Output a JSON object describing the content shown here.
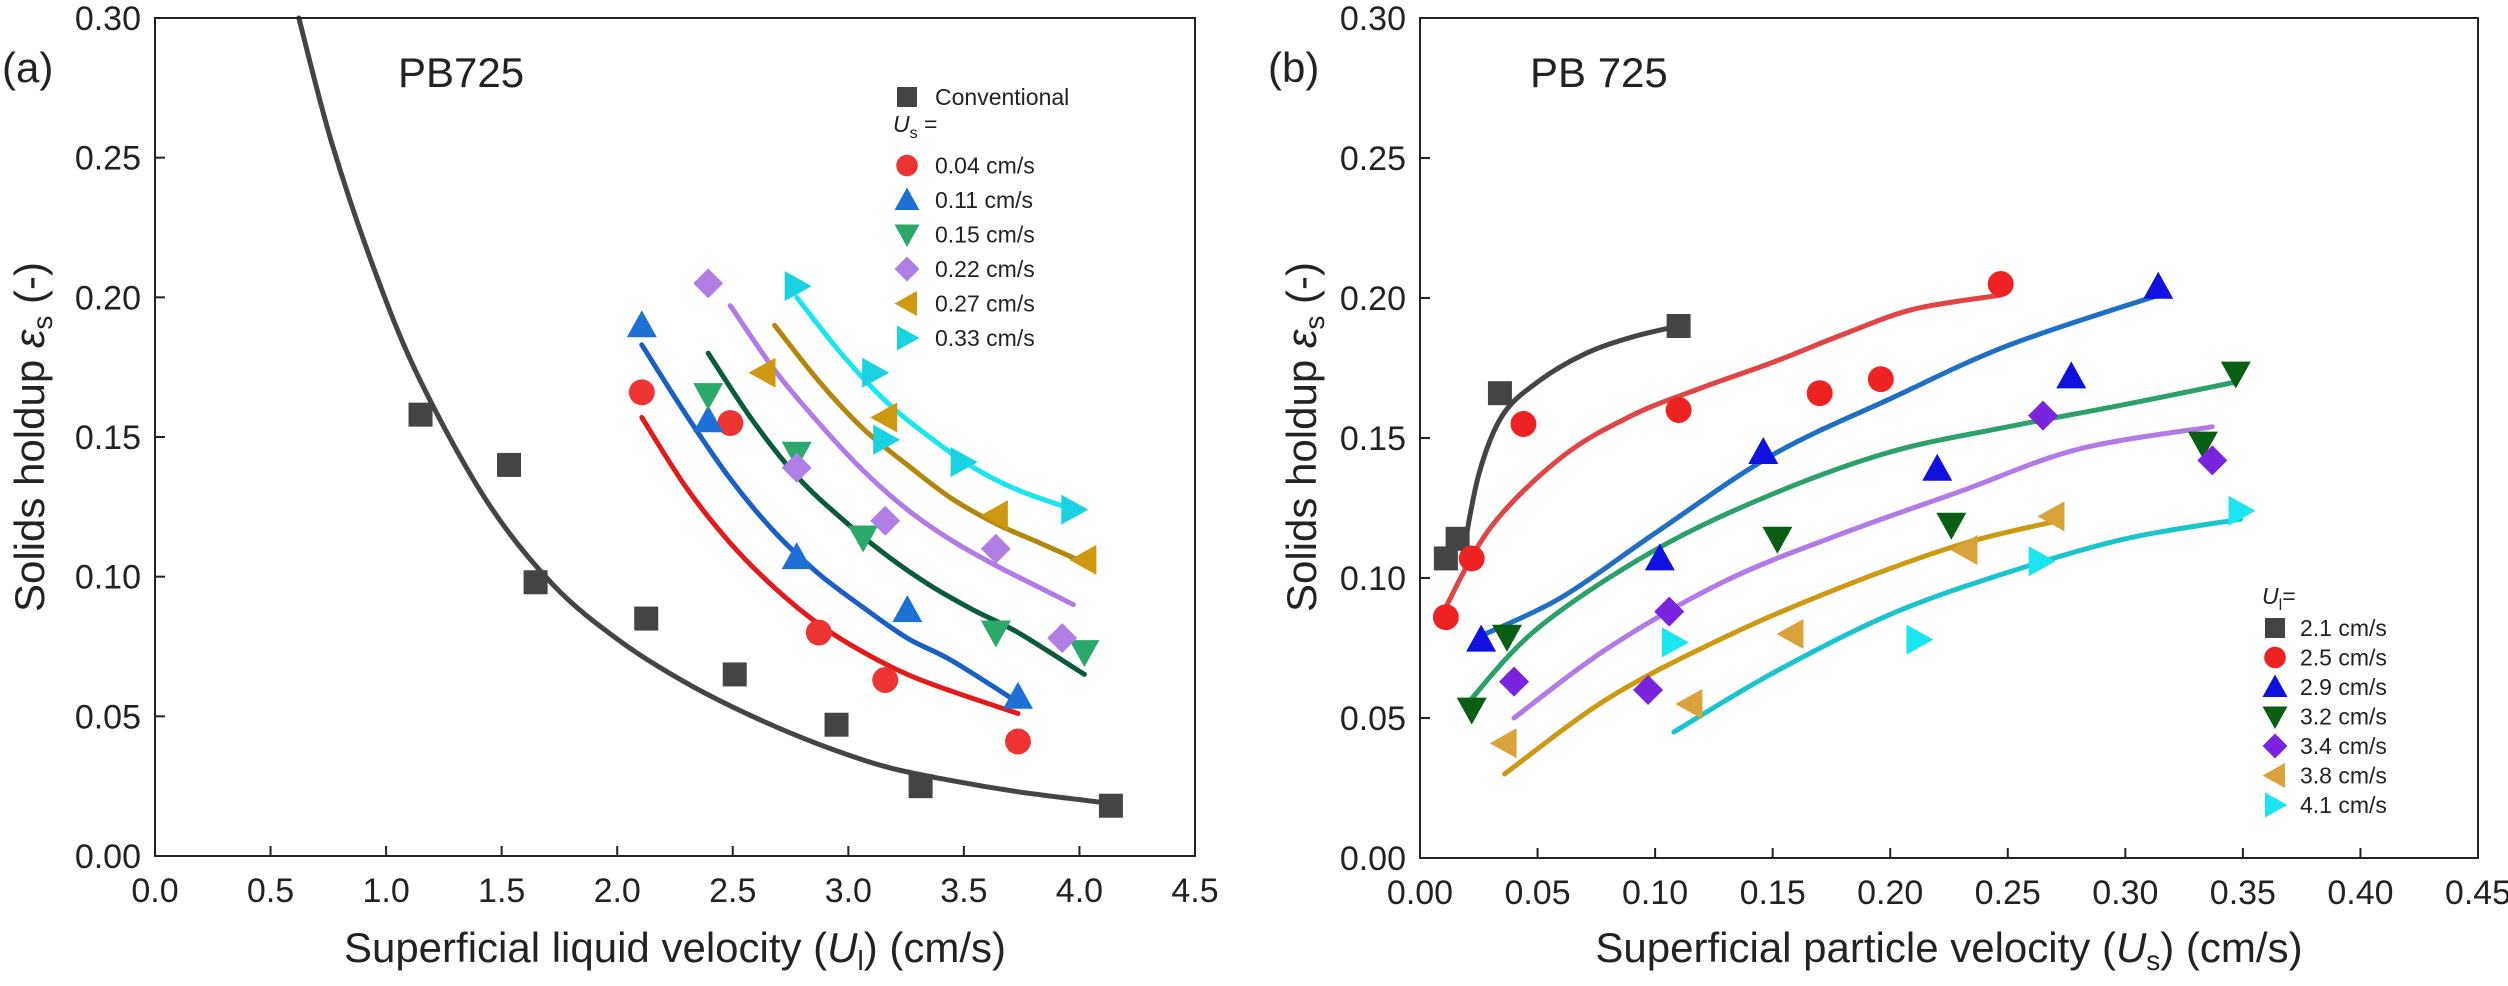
{
  "colors": {
    "axis": "#222222",
    "conventional": "#444444",
    "panel_a_series": [
      "#ee3333",
      "#1c70d6",
      "#2aa96a",
      "#b07fe6",
      "#cc9911",
      "#19d3e3"
    ],
    "panel_a_fits": [
      "#e31a1a",
      "#1a5fc4",
      "#0a5a3c",
      "#b07be6",
      "#b3870d",
      "#1ae6f0"
    ],
    "panel_b_series": [
      "#444444",
      "#ee2222",
      "#1010e0",
      "#0a5e14",
      "#7a24e0",
      "#d9a23a",
      "#19e6f0"
    ],
    "panel_b_fits": [
      "#444444",
      "#e04444",
      "#1f6fc4",
      "#2aa06a",
      "#b07be6",
      "#cc9911",
      "#1ac4cc"
    ]
  },
  "chart_data": [
    {
      "type": "scatter",
      "panel_label": "(a)",
      "title": "PB725",
      "xlabel": "Superficial liquid velocity (U_l) (cm/s)",
      "ylabel": "Solids holdup ε_s (-)",
      "xlim": [
        0,
        4.7
      ],
      "ylim": [
        0,
        0.3
      ],
      "xticks": [
        "0.0",
        "0.5",
        "1.0",
        "1.5",
        "2.0",
        "2.5",
        "3.0",
        "3.5",
        "4.0",
        "4.5"
      ],
      "yticks": [
        "0.00",
        "0.05",
        "0.10",
        "0.15",
        "0.20",
        "0.25",
        "0.30"
      ],
      "grid": false,
      "legend_position": "top-right",
      "legend_header": "U_s =",
      "series": [
        {
          "name": "Conventional",
          "marker": "square",
          "x": [
            1.2,
            1.6,
            1.72,
            2.22,
            2.62,
            3.08,
            3.46,
            4.32
          ],
          "y": [
            0.158,
            0.14,
            0.098,
            0.085,
            0.065,
            0.047,
            0.025,
            0.018
          ]
        },
        {
          "name": "0.04 cm/s",
          "marker": "circle",
          "x": [
            2.2,
            2.6,
            3.0,
            3.3,
            3.9
          ],
          "y": [
            0.166,
            0.155,
            0.08,
            0.063,
            0.041
          ]
        },
        {
          "name": "0.11 cm/s",
          "marker": "triangle-up",
          "x": [
            2.2,
            2.5,
            2.9,
            3.4,
            3.9
          ],
          "y": [
            0.19,
            0.156,
            0.107,
            0.088,
            0.057
          ]
        },
        {
          "name": "0.15 cm/s",
          "marker": "triangle-down",
          "x": [
            2.5,
            2.9,
            3.2,
            3.8,
            4.2
          ],
          "y": [
            0.165,
            0.144,
            0.114,
            0.08,
            0.073
          ]
        },
        {
          "name": "0.22 cm/s",
          "marker": "diamond",
          "x": [
            2.5,
            2.9,
            3.3,
            3.8,
            4.1
          ],
          "y": [
            0.205,
            0.139,
            0.12,
            0.11,
            0.078
          ]
        },
        {
          "name": "0.27 cm/s",
          "marker": "triangle-left",
          "x": [
            2.75,
            3.3,
            3.8,
            4.2
          ],
          "y": [
            0.173,
            0.157,
            0.122,
            0.106
          ]
        },
        {
          "name": "0.33 cm/s",
          "marker": "triangle-right",
          "x": [
            2.9,
            3.25,
            3.3,
            3.65,
            4.15
          ],
          "y": [
            0.204,
            0.173,
            0.149,
            0.141,
            0.124
          ]
        }
      ],
      "fits": [
        {
          "series": "Conventional",
          "x": [
            0.65,
            0.8,
            1.0,
            1.2,
            1.5,
            1.8,
            2.1,
            2.4,
            2.7,
            3.0,
            3.3,
            3.6,
            3.9,
            4.3
          ],
          "y": [
            0.3,
            0.255,
            0.208,
            0.17,
            0.127,
            0.097,
            0.077,
            0.062,
            0.05,
            0.04,
            0.032,
            0.027,
            0.023,
            0.019
          ]
        },
        {
          "series": "0.04 cm/s",
          "x": [
            2.2,
            2.4,
            2.6,
            2.8,
            3.0,
            3.2,
            3.4,
            3.6,
            3.9
          ],
          "y": [
            0.157,
            0.132,
            0.112,
            0.096,
            0.083,
            0.073,
            0.065,
            0.059,
            0.051
          ]
        },
        {
          "series": "0.11 cm/s",
          "x": [
            2.2,
            2.4,
            2.6,
            2.8,
            3.0,
            3.2,
            3.4,
            3.6,
            3.9
          ],
          "y": [
            0.183,
            0.158,
            0.135,
            0.116,
            0.101,
            0.089,
            0.078,
            0.07,
            0.055
          ]
        },
        {
          "series": "0.15 cm/s",
          "x": [
            2.5,
            2.7,
            2.9,
            3.1,
            3.3,
            3.5,
            3.7,
            3.9,
            4.2
          ],
          "y": [
            0.18,
            0.156,
            0.136,
            0.121,
            0.108,
            0.097,
            0.088,
            0.08,
            0.065
          ]
        },
        {
          "series": "0.22 cm/s",
          "x": [
            2.6,
            2.8,
            3.0,
            3.2,
            3.4,
            3.6,
            3.8,
            4.0,
            4.15
          ],
          "y": [
            0.197,
            0.174,
            0.155,
            0.138,
            0.124,
            0.113,
            0.104,
            0.096,
            0.09
          ]
        },
        {
          "series": "0.27 cm/s",
          "x": [
            2.8,
            3.0,
            3.2,
            3.4,
            3.6,
            3.8,
            4.0,
            4.2
          ],
          "y": [
            0.19,
            0.17,
            0.153,
            0.14,
            0.128,
            0.119,
            0.112,
            0.105
          ]
        },
        {
          "series": "0.33 cm/s",
          "x": [
            2.9,
            3.1,
            3.3,
            3.5,
            3.7,
            3.9,
            4.15
          ],
          "y": [
            0.2,
            0.18,
            0.163,
            0.15,
            0.139,
            0.131,
            0.124
          ]
        }
      ]
    },
    {
      "type": "scatter",
      "panel_label": "(b)",
      "title": "PB 725",
      "xlabel": "Superficial particle velocity (U_s) (cm/s)",
      "ylabel": "Solids holdup ε_s (-)",
      "xlim": [
        0,
        0.45
      ],
      "ylim": [
        0,
        0.3
      ],
      "xticks": [
        "0.00",
        "0.05",
        "0.10",
        "0.15",
        "0.20",
        "0.25",
        "0.30",
        "0.35",
        "0.40",
        "0.45"
      ],
      "yticks": [
        "0.00",
        "0.05",
        "0.10",
        "0.15",
        "0.20",
        "0.25",
        "0.30"
      ],
      "grid": false,
      "legend_position": "bottom-right",
      "legend_header": "U_l=",
      "series": [
        {
          "name": "2.1 cm/s",
          "marker": "square",
          "x": [
            0.011,
            0.016,
            0.034,
            0.11
          ],
          "y": [
            0.107,
            0.114,
            0.166,
            0.19
          ]
        },
        {
          "name": "2.5 cm/s",
          "marker": "circle",
          "x": [
            0.011,
            0.022,
            0.044,
            0.11,
            0.17,
            0.196,
            0.247
          ],
          "y": [
            0.086,
            0.107,
            0.155,
            0.16,
            0.166,
            0.171,
            0.205
          ]
        },
        {
          "name": "2.9 cm/s",
          "marker": "triangle-up",
          "x": [
            0.026,
            0.102,
            0.146,
            0.22,
            0.277,
            0.314
          ],
          "y": [
            0.078,
            0.107,
            0.145,
            0.139,
            0.172,
            0.204
          ]
        },
        {
          "name": "3.2 cm/s",
          "marker": "triangle-down",
          "x": [
            0.022,
            0.037,
            0.152,
            0.226,
            0.333,
            0.347
          ],
          "y": [
            0.053,
            0.079,
            0.114,
            0.119,
            0.148,
            0.173
          ]
        },
        {
          "name": "3.4 cm/s",
          "marker": "diamond",
          "x": [
            0.04,
            0.097,
            0.106,
            0.265,
            0.337
          ],
          "y": [
            0.063,
            0.06,
            0.088,
            0.158,
            0.142
          ]
        },
        {
          "name": "3.8 cm/s",
          "marker": "triangle-left",
          "x": [
            0.036,
            0.115,
            0.158,
            0.232,
            0.269
          ],
          "y": [
            0.041,
            0.055,
            0.08,
            0.11,
            0.122
          ]
        },
        {
          "name": "4.1 cm/s",
          "marker": "triangle-right",
          "x": [
            0.108,
            0.212,
            0.264,
            0.349
          ],
          "y": [
            0.077,
            0.078,
            0.106,
            0.124
          ]
        }
      ],
      "fits": [
        {
          "series": "2.1 cm/s",
          "x": [
            0.018,
            0.025,
            0.035,
            0.05,
            0.07,
            0.09,
            0.11
          ],
          "y": [
            0.107,
            0.137,
            0.158,
            0.17,
            0.18,
            0.186,
            0.19
          ]
        },
        {
          "series": "2.5 cm/s",
          "x": [
            0.01,
            0.03,
            0.06,
            0.09,
            0.12,
            0.15,
            0.18,
            0.21,
            0.247
          ],
          "y": [
            0.088,
            0.118,
            0.143,
            0.158,
            0.168,
            0.177,
            0.187,
            0.196,
            0.201
          ]
        },
        {
          "series": "2.9 cm/s",
          "x": [
            0.025,
            0.06,
            0.1,
            0.15,
            0.2,
            0.25,
            0.314
          ],
          "y": [
            0.079,
            0.093,
            0.116,
            0.144,
            0.164,
            0.183,
            0.201
          ]
        },
        {
          "series": "3.2 cm/s",
          "x": [
            0.02,
            0.05,
            0.1,
            0.15,
            0.2,
            0.25,
            0.3,
            0.347
          ],
          "y": [
            0.055,
            0.082,
            0.11,
            0.13,
            0.145,
            0.154,
            0.162,
            0.17
          ]
        },
        {
          "series": "3.4 cm/s",
          "x": [
            0.04,
            0.08,
            0.13,
            0.18,
            0.23,
            0.28,
            0.337
          ],
          "y": [
            0.05,
            0.075,
            0.099,
            0.116,
            0.131,
            0.146,
            0.154
          ]
        },
        {
          "series": "3.8 cm/s",
          "x": [
            0.036,
            0.08,
            0.13,
            0.18,
            0.23,
            0.269
          ],
          "y": [
            0.03,
            0.057,
            0.079,
            0.097,
            0.112,
            0.12
          ]
        },
        {
          "series": "4.1 cm/s",
          "x": [
            0.108,
            0.15,
            0.2,
            0.25,
            0.3,
            0.349
          ],
          "y": [
            0.045,
            0.066,
            0.087,
            0.102,
            0.114,
            0.121
          ]
        }
      ]
    }
  ]
}
